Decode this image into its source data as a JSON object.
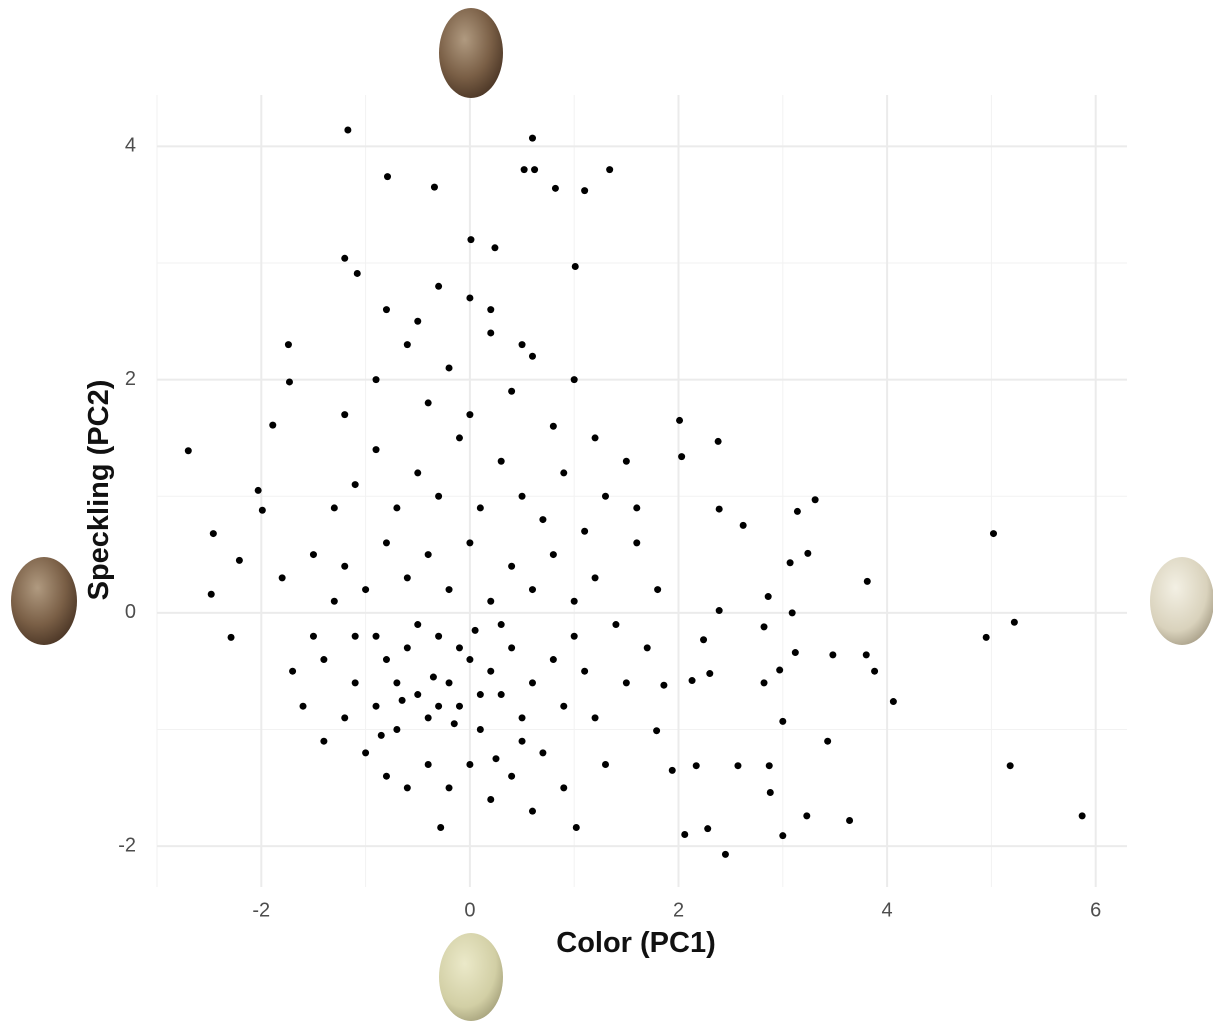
{
  "chart_data": {
    "type": "scatter",
    "x_label": "Color (PC1)",
    "y_label": "Speckling (PC2)",
    "color": "#000000",
    "grid": true,
    "xlim": [
      -3.0,
      6.3
    ],
    "ylim": [
      -2.35,
      4.44
    ],
    "xticks": [
      -2,
      0,
      2,
      4,
      6
    ],
    "yticks": [
      -2,
      0,
      2,
      4
    ],
    "xminor": [
      -3,
      -1,
      1,
      3,
      5
    ],
    "yminor": [
      -1,
      1,
      3
    ],
    "x": [
      -1.17,
      0.6,
      -0.79,
      -0.34,
      0.52,
      0.62,
      0.82,
      1.1,
      1.34,
      0.01,
      0.24,
      -1.2,
      -1.08,
      1.01,
      -2.7,
      -2.46,
      -2.48,
      -2.21,
      -2.29,
      -2.03,
      -1.99,
      -1.89,
      -1.74,
      -1.73,
      5.02,
      4.95,
      5.22,
      5.18,
      5.87,
      4.06,
      3.81,
      3.88,
      3.8,
      3.48,
      3.43,
      3.64,
      3.23,
      3.0,
      2.45,
      2.06,
      2.28,
      -0.28,
      1.02,
      2.88,
      3.31,
      3.14,
      3.24,
      3.07,
      3.09,
      2.62,
      2.38,
      2.39,
      2.01,
      2.03,
      2.39,
      2.86,
      2.82,
      2.97,
      2.82,
      3.12,
      3.0,
      2.87,
      2.57,
      2.17,
      1.94,
      2.3,
      2.13,
      2.24,
      1.79,
      1.86,
      -1.5,
      -1.3,
      -1.1,
      -0.9,
      -0.8,
      -0.7,
      -0.6,
      -0.5,
      -0.4,
      -0.3,
      -0.2,
      -0.1,
      0.0,
      0.1,
      0.2,
      0.3,
      0.4,
      0.5,
      0.6,
      0.7,
      0.8,
      0.9,
      1.0,
      1.1,
      1.2,
      1.3,
      -1.7,
      -1.6,
      -1.4,
      -1.2,
      -1.0,
      -0.8,
      -0.6,
      -0.4,
      -0.2,
      0.0,
      0.2,
      0.4,
      0.6,
      0.9,
      -1.8,
      -1.5,
      -1.2,
      -1.0,
      -0.8,
      -0.6,
      -0.4,
      -0.2,
      0.0,
      0.2,
      0.4,
      0.6,
      0.8,
      1.0,
      1.2,
      1.4,
      -1.3,
      -1.1,
      -0.9,
      -0.7,
      -0.5,
      -0.3,
      -0.1,
      0.1,
      0.3,
      0.5,
      0.7,
      0.9,
      1.1,
      1.3,
      1.6,
      -1.2,
      -0.9,
      -0.6,
      -0.4,
      -0.2,
      0.0,
      0.2,
      0.4,
      0.6,
      0.8,
      1.0,
      1.2,
      1.5,
      -0.8,
      -0.5,
      -0.3,
      0.0,
      0.2,
      0.5,
      -0.9,
      -0.7,
      -0.5,
      -0.3,
      -0.1,
      0.1,
      0.3,
      -1.4,
      -1.1,
      0.5,
      -0.35,
      -0.15,
      -0.65,
      0.05,
      0.25,
      -0.85,
      1.5,
      1.7,
      1.6,
      1.8
    ],
    "values": [
      4.14,
      4.07,
      3.74,
      3.65,
      3.8,
      3.8,
      3.64,
      3.62,
      3.8,
      3.2,
      3.13,
      3.04,
      2.91,
      2.97,
      1.39,
      0.68,
      0.16,
      0.45,
      -0.21,
      1.05,
      0.88,
      1.61,
      2.3,
      1.98,
      0.68,
      -0.21,
      -0.08,
      -1.31,
      -1.74,
      -0.76,
      0.27,
      -0.5,
      -0.36,
      -0.36,
      -1.1,
      -1.78,
      -1.74,
      -1.91,
      -2.07,
      -1.9,
      -1.85,
      -1.84,
      -1.84,
      -1.54,
      0.97,
      0.87,
      0.51,
      0.43,
      0.0,
      0.75,
      1.47,
      0.89,
      1.65,
      1.34,
      0.02,
      0.14,
      -0.12,
      -0.49,
      -0.6,
      -0.34,
      -0.93,
      -1.31,
      -1.31,
      -1.31,
      -1.35,
      -0.52,
      -0.58,
      -0.23,
      -1.01,
      -0.62,
      -0.2,
      0.1,
      -0.6,
      -0.8,
      -0.4,
      -1.0,
      -0.3,
      -0.7,
      -0.9,
      -0.2,
      -0.6,
      -0.8,
      -0.4,
      -1.0,
      -0.5,
      -0.7,
      -0.3,
      -0.9,
      -0.6,
      -1.2,
      -0.4,
      -0.8,
      -0.2,
      -0.5,
      -0.9,
      -1.3,
      -0.5,
      -0.8,
      -1.1,
      -0.9,
      -1.2,
      -1.4,
      -1.5,
      -1.3,
      -1.5,
      -1.3,
      -1.6,
      -1.4,
      -1.7,
      -1.5,
      0.3,
      0.5,
      0.4,
      0.2,
      0.6,
      0.3,
      0.5,
      0.2,
      0.6,
      0.1,
      0.4,
      0.2,
      0.5,
      0.1,
      0.3,
      -0.1,
      0.9,
      1.1,
      1.4,
      0.9,
      1.2,
      1.0,
      1.5,
      0.9,
      1.3,
      1.0,
      0.8,
      1.2,
      0.7,
      1.0,
      0.6,
      1.7,
      2.0,
      2.3,
      1.8,
      2.1,
      1.7,
      2.4,
      1.9,
      2.2,
      1.6,
      2.0,
      1.5,
      1.3,
      2.6,
      2.5,
      2.8,
      2.7,
      2.6,
      2.3,
      -0.2,
      -0.6,
      -0.1,
      -0.8,
      -0.3,
      -0.7,
      -0.1,
      -0.4,
      -0.2,
      -1.1,
      -0.55,
      -0.95,
      -0.75,
      -0.15,
      -1.25,
      -1.05,
      -0.6,
      -0.3,
      0.9,
      0.2
    ]
  }
}
